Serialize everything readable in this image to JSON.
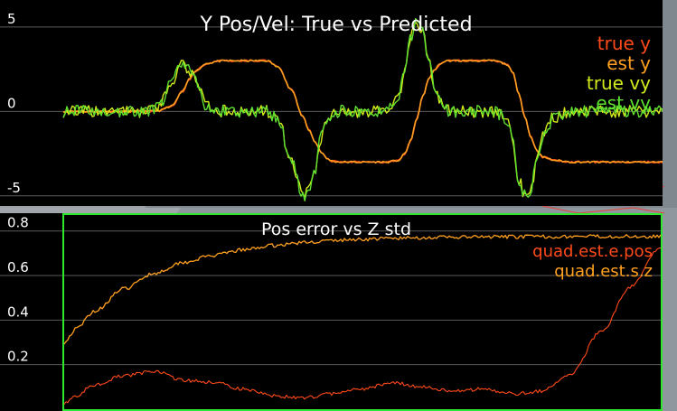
{
  "chart_data": [
    {
      "type": "line",
      "title": "Y Pos/Vel: True vs Predicted",
      "xlabel": "",
      "ylabel": "",
      "ylim": [
        -5.6,
        6.6
      ],
      "y_ticks": [
        "5",
        "0",
        "-5"
      ],
      "y_tick_values": [
        5,
        0,
        -5
      ],
      "grid": "horizontal",
      "legend_position": "top-right",
      "x": [
        0,
        0.05,
        0.1,
        0.14,
        0.16,
        0.18,
        0.2,
        0.21,
        0.22,
        0.24,
        0.26,
        0.28,
        0.3,
        0.32,
        0.34,
        0.36,
        0.38,
        0.4,
        0.41,
        0.42,
        0.43,
        0.44,
        0.45,
        0.46,
        0.47,
        0.48,
        0.49,
        0.5,
        0.52,
        0.54,
        0.56,
        0.57,
        0.58,
        0.59,
        0.6,
        0.61,
        0.62,
        0.63,
        0.64,
        0.65,
        0.66,
        0.68,
        0.7,
        0.72,
        0.74,
        0.75,
        0.76,
        0.77,
        0.78,
        0.79,
        0.8,
        0.82,
        0.85,
        0.9,
        0.95,
        1.0
      ],
      "series": [
        {
          "name": "true y",
          "color": "#ff4a1a",
          "values": [
            0,
            0,
            0,
            0,
            0.05,
            0.3,
            1.2,
            1.9,
            2.4,
            2.85,
            2.98,
            3.0,
            3.0,
            3.0,
            3.0,
            2.6,
            1.3,
            -0.3,
            -1.1,
            -1.8,
            -2.4,
            -2.8,
            -2.95,
            -3.0,
            -3.0,
            -3.0,
            -3.0,
            -3.0,
            -3.0,
            -3.0,
            -2.9,
            -2.5,
            -1.7,
            -0.4,
            0.9,
            1.9,
            2.5,
            2.85,
            3.0,
            3.0,
            3.0,
            3.0,
            3.0,
            3.0,
            2.8,
            2.3,
            1.1,
            -0.3,
            -1.5,
            -2.3,
            -2.7,
            -2.9,
            -3.0,
            -3.0,
            -3.0,
            -3.0
          ]
        },
        {
          "name": "est y",
          "color": "#ffa020",
          "values": [
            0,
            0,
            0,
            0,
            0.05,
            0.3,
            1.2,
            1.9,
            2.4,
            2.85,
            2.98,
            3.0,
            3.0,
            3.0,
            3.0,
            2.6,
            1.3,
            -0.3,
            -1.1,
            -1.8,
            -2.4,
            -2.8,
            -2.95,
            -3.0,
            -3.0,
            -3.0,
            -3.0,
            -3.0,
            -3.0,
            -3.0,
            -2.9,
            -2.5,
            -1.7,
            -0.4,
            0.9,
            1.9,
            2.5,
            2.85,
            3.0,
            3.0,
            3.0,
            3.0,
            3.0,
            3.0,
            2.8,
            2.3,
            1.1,
            -0.3,
            -1.5,
            -2.3,
            -2.7,
            -2.9,
            -3.0,
            -3.0,
            -3.0,
            -3.0
          ]
        },
        {
          "name": "true vy",
          "color": "#d2ea1c",
          "values": [
            0,
            0,
            0,
            0,
            0.2,
            1.8,
            2.8,
            2.5,
            1.8,
            0.3,
            0,
            0,
            0,
            0,
            0,
            -0.6,
            -3.0,
            -5.0,
            -4.8,
            -3.5,
            -1.5,
            -0.5,
            -0.1,
            0,
            0,
            0,
            0,
            0,
            0,
            0.2,
            0.8,
            2.5,
            4.5,
            5.3,
            4.6,
            3.0,
            1.4,
            0.5,
            0.1,
            0,
            0,
            0,
            0,
            0,
            -0.5,
            -1.8,
            -4.0,
            -5.0,
            -4.6,
            -3.0,
            -1.4,
            -0.3,
            0,
            0,
            0,
            0
          ]
        },
        {
          "name": "est vy",
          "color": "#5ee030",
          "values": [
            0,
            0,
            0,
            0,
            0.2,
            1.8,
            2.8,
            2.5,
            1.8,
            0.3,
            0,
            0,
            0,
            0,
            0,
            -0.6,
            -3.0,
            -5.0,
            -4.8,
            -3.5,
            -1.5,
            -0.5,
            -0.1,
            0,
            0,
            0,
            0,
            0,
            0,
            0.2,
            0.8,
            2.5,
            4.5,
            5.3,
            4.6,
            3.0,
            1.4,
            0.5,
            0.1,
            0,
            0,
            0,
            0,
            0,
            -0.5,
            -1.8,
            -4.0,
            -5.0,
            -4.6,
            -3.0,
            -1.4,
            -0.3,
            0,
            0,
            0,
            0
          ]
        }
      ]
    },
    {
      "type": "line",
      "title": "Pos error vs Z std",
      "xlabel": "",
      "ylabel": "",
      "ylim": [
        0,
        0.88
      ],
      "y_ticks": [
        "0.8",
        "0.6",
        "0.4",
        "0.2"
      ],
      "y_tick_values": [
        0.8,
        0.6,
        0.4,
        0.2
      ],
      "grid": "horizontal",
      "legend_position": "top-right",
      "x": [
        0,
        0.02,
        0.05,
        0.1,
        0.15,
        0.2,
        0.25,
        0.3,
        0.35,
        0.4,
        0.45,
        0.5,
        0.55,
        0.6,
        0.65,
        0.7,
        0.75,
        0.8,
        0.85,
        0.9,
        0.95,
        1.0
      ],
      "series": [
        {
          "name": "quad.est.e.pos",
          "color": "#ff4a1a",
          "values": [
            0.03,
            0.06,
            0.11,
            0.15,
            0.17,
            0.13,
            0.12,
            0.09,
            0.06,
            0.05,
            0.07,
            0.09,
            0.12,
            0.1,
            0.08,
            0.09,
            0.07,
            0.08,
            0.16,
            0.35,
            0.55,
            0.73
          ]
        },
        {
          "name": "quad.est.s.z",
          "color": "#ffa020",
          "values": [
            0.3,
            0.36,
            0.44,
            0.54,
            0.61,
            0.66,
            0.69,
            0.715,
            0.735,
            0.748,
            0.757,
            0.763,
            0.767,
            0.77,
            0.772,
            0.773,
            0.774,
            0.775,
            0.775,
            0.776,
            0.776,
            0.776
          ]
        }
      ]
    }
  ]
}
